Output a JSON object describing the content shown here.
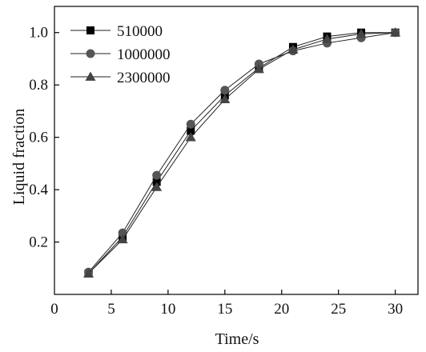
{
  "chart_data": {
    "type": "line",
    "title": "",
    "xlabel": "Time/s",
    "ylabel": "Liquid fraction",
    "xlim": [
      0,
      32
    ],
    "ylim": [
      0,
      1.1
    ],
    "x_ticks": [
      0,
      5,
      10,
      15,
      20,
      25,
      30
    ],
    "y_ticks": [
      0.2,
      0.4,
      0.6,
      0.8,
      1.0
    ],
    "x_tick_labels": [
      "0",
      "5",
      "10",
      "15",
      "20",
      "25",
      "30"
    ],
    "y_tick_labels": [
      "0.2",
      "0.4",
      "0.6",
      "0.8",
      "1.0"
    ],
    "grid": false,
    "legend_position": "top-left",
    "series": [
      {
        "name": "510000",
        "marker": "square",
        "color": "#000000",
        "x": [
          3,
          6,
          9,
          12,
          15,
          18,
          21,
          24,
          27,
          30
        ],
        "y": [
          0.08,
          0.22,
          0.43,
          0.625,
          0.76,
          0.865,
          0.945,
          0.985,
          1.0,
          1.0
        ]
      },
      {
        "name": "1000000",
        "marker": "circle",
        "color": "#555555",
        "x": [
          3,
          6,
          9,
          12,
          15,
          18,
          21,
          24,
          27,
          30
        ],
        "y": [
          0.085,
          0.235,
          0.455,
          0.65,
          0.78,
          0.88,
          0.93,
          0.96,
          0.98,
          1.0
        ]
      },
      {
        "name": "2300000",
        "marker": "triangle",
        "color": "#444444",
        "x": [
          3,
          6,
          9,
          12,
          15,
          18,
          21,
          24,
          27,
          30
        ],
        "y": [
          0.08,
          0.21,
          0.41,
          0.6,
          0.745,
          0.86,
          0.935,
          0.975,
          0.995,
          1.0
        ]
      }
    ]
  }
}
